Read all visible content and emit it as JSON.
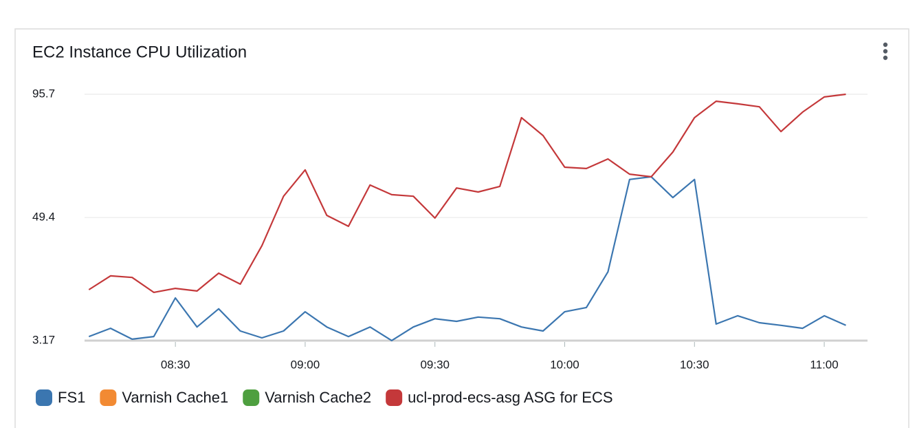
{
  "chart_data": {
    "type": "line",
    "title": "EC2 Instance CPU Utilization",
    "x": [
      "08:10",
      "08:15",
      "08:20",
      "08:25",
      "08:30",
      "08:35",
      "08:40",
      "08:45",
      "08:50",
      "08:55",
      "09:00",
      "09:05",
      "09:10",
      "09:15",
      "09:20",
      "09:25",
      "09:30",
      "09:35",
      "09:40",
      "09:45",
      "09:50",
      "09:55",
      "10:00",
      "10:05",
      "10:10",
      "10:15",
      "10:20",
      "10:25",
      "10:30",
      "10:35",
      "10:40",
      "10:45",
      "10:50",
      "10:55",
      "11:00",
      "11:05"
    ],
    "xlim": [
      "08:09",
      "11:10"
    ],
    "xticks": [
      "08:30",
      "09:00",
      "09:30",
      "10:00",
      "10:30",
      "11:00"
    ],
    "ylim": [
      3.17,
      95.7
    ],
    "yticks": [
      3.17,
      49.4,
      95.7
    ],
    "grid": true,
    "legend": "bottom",
    "series": [
      {
        "name": "FS1",
        "color": "#3b76b0",
        "values": [
          4.7,
          7.8,
          3.7,
          4.7,
          19.2,
          8.3,
          15.1,
          6.8,
          4.2,
          6.8,
          14.0,
          8.3,
          4.7,
          8.3,
          3.2,
          8.3,
          11.4,
          10.4,
          12.0,
          11.4,
          8.3,
          6.8,
          14.0,
          15.6,
          29.0,
          63.7,
          64.7,
          56.9,
          63.7,
          9.4,
          12.5,
          9.9,
          8.9,
          7.8,
          12.5,
          8.9
        ]
      },
      {
        "name": "Varnish Cache1",
        "color": "#f28a33"
      },
      {
        "name": "Varnish Cache2",
        "color": "#4e9f3f"
      },
      {
        "name": "ucl-prod-ecs-asg ASG for ECS",
        "color": "#c4383a",
        "values": [
          22.3,
          27.5,
          26.9,
          21.3,
          22.8,
          21.8,
          28.5,
          24.4,
          38.8,
          57.4,
          67.3,
          50.2,
          46.1,
          61.6,
          58.0,
          57.4,
          49.2,
          60.5,
          59.0,
          61.1,
          86.9,
          80.2,
          68.3,
          67.8,
          71.4,
          65.7,
          64.7,
          74.0,
          86.9,
          93.1,
          92.1,
          91.0,
          81.7,
          89.0,
          94.7,
          95.7
        ]
      }
    ]
  }
}
